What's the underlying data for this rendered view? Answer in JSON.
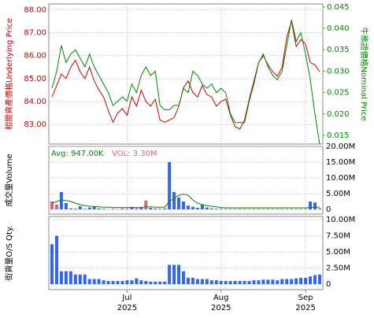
{
  "chart_data": [
    {
      "type": "line",
      "y_label": "相關資產價格Underlying Price",
      "y2_label": "牛熊證價格Nominal Price",
      "categories": [
        null,
        null,
        null,
        null,
        null,
        null,
        null,
        null,
        null,
        null,
        null,
        null,
        null,
        null,
        null,
        null,
        null,
        null,
        null,
        null,
        null,
        null,
        null,
        null,
        null,
        null,
        null,
        null,
        null,
        null,
        null,
        null,
        null,
        null,
        null,
        null,
        null,
        null,
        null,
        null,
        null,
        null,
        null,
        null,
        null,
        null,
        null,
        null,
        null,
        null,
        null,
        null,
        null,
        null,
        null,
        null,
        null,
        null
      ],
      "series": [
        {
          "color": "#cc0000",
          "values": [
            84.2,
            84.7,
            85.2,
            85.0,
            85.5,
            85.8,
            85.3,
            85.0,
            85.5,
            84.9,
            84.5,
            84.2,
            83.6,
            83.1,
            83.5,
            83.7,
            83.4,
            84.2,
            83.8,
            84.5,
            84.0,
            83.8,
            84.1,
            83.2,
            83.1,
            83.2,
            83.3,
            83.8,
            84.6,
            84.9,
            84.4,
            84.2,
            84.7,
            84.3,
            84.2,
            83.8,
            84.0,
            84.1,
            83.4,
            82.9,
            82.8,
            83.2,
            84.1,
            84.9,
            85.7,
            86.0,
            85.6,
            85.3,
            85.1,
            85.5,
            86.8,
            87.5,
            86.4,
            86.7,
            86.5,
            85.7,
            85.6,
            85.3
          ]
        },
        {
          "color": "#008800",
          "axis": "y2",
          "values": [
            0.026,
            0.03,
            0.036,
            0.032,
            0.034,
            0.035,
            0.033,
            0.031,
            0.034,
            0.031,
            0.029,
            0.027,
            0.025,
            0.022,
            0.023,
            0.024,
            0.023,
            0.027,
            0.025,
            0.029,
            0.031,
            0.029,
            0.03,
            0.022,
            0.021,
            0.021,
            0.022,
            0.022,
            0.026,
            0.025,
            0.03,
            0.029,
            0.027,
            0.026,
            0.027,
            0.025,
            0.026,
            0.025,
            0.02,
            0.018,
            0.018,
            0.018,
            0.023,
            0.027,
            0.032,
            0.034,
            0.031,
            0.029,
            0.028,
            0.03,
            0.036,
            0.042,
            0.037,
            0.039,
            0.034,
            0.028,
            0.02,
            0.013
          ]
        }
      ],
      "ylim": [
        82.15,
        88.25
      ],
      "yticks": [
        {
          "value": 83,
          "label": "83.00"
        },
        {
          "value": 84,
          "label": "84.00"
        },
        {
          "value": 85,
          "label": "85.00"
        },
        {
          "value": 86,
          "label": "86.00"
        },
        {
          "value": 87,
          "label": "87.00"
        },
        {
          "value": 88,
          "label": "88.00"
        }
      ],
      "y2lim": [
        0.013,
        0.0457
      ],
      "y2ticks": [
        0.015,
        {
          "value": 0.02,
          "label": "0.020"
        },
        0.025,
        {
          "value": 0.03,
          "label": "0.030"
        },
        0.035,
        {
          "value": 0.04,
          "label": "0.040"
        },
        0.045
      ],
      "grid": true
    },
    {
      "type": "bar",
      "y_label": "成交量Volume",
      "avg_text": "Avg: 947.00K",
      "avg_color": "#008800",
      "vol_text": "VOL: 3.30M",
      "vol_color": "#e06080",
      "categories": [
        null,
        null,
        null,
        null,
        null,
        null,
        null,
        null,
        null,
        null,
        null,
        null,
        null,
        null,
        null,
        null,
        null,
        null,
        null,
        null,
        null,
        null,
        null,
        null,
        null,
        null,
        null,
        null,
        null,
        null,
        null,
        null,
        null,
        null,
        null,
        null,
        null,
        null,
        null,
        null,
        null,
        null,
        null,
        null,
        null,
        null,
        null,
        null,
        null,
        null,
        null,
        null,
        null,
        null,
        null,
        null,
        null,
        null
      ],
      "values": [
        2500000,
        1500000,
        5500000,
        2000000,
        300000,
        200000,
        1000000,
        200000,
        600000,
        800000,
        300000,
        200000,
        100000,
        200000,
        100000,
        300000,
        200000,
        800000,
        300000,
        600000,
        2800000,
        500000,
        300000,
        200000,
        300000,
        15000000,
        5500000,
        3800000,
        2500000,
        1200000,
        800000,
        500000,
        1500000,
        600000,
        300000,
        200000,
        200000,
        150000,
        150000,
        150000,
        150000,
        150000,
        150000,
        150000,
        150000,
        150000,
        150000,
        150000,
        150000,
        150000,
        150000,
        150000,
        150000,
        150000,
        150000,
        2500000,
        2200000,
        300000
      ],
      "colors": [
        "#e06080",
        "#e06080",
        "#3366ee",
        "#3366ee",
        "#3366ee",
        "#3366ee",
        "#3366ee",
        "#3366ee",
        "#3366ee",
        "#3366ee",
        "#3366ee",
        "#3366ee",
        "#3366ee",
        "#3366ee",
        "#3366ee",
        "#3366ee",
        "#3366ee",
        "#3366ee",
        "#3366ee",
        "#3366ee",
        "#e06080",
        "#3366ee",
        "#3366ee",
        "#3366ee",
        "#3366ee",
        "#3366ee",
        "#3366ee",
        "#3366ee",
        "#3366ee",
        "#3366ee",
        "#3366ee",
        "#3366ee",
        "#3366ee",
        "#3366ee",
        "#3366ee",
        "#3366ee",
        "#3366ee",
        "#3366ee",
        "#3366ee",
        "#3366ee",
        "#3366ee",
        "#3366ee",
        "#3366ee",
        "#3366ee",
        "#3366ee",
        "#3366ee",
        "#3366ee",
        "#3366ee",
        "#3366ee",
        "#3366ee",
        "#3366ee",
        "#3366ee",
        "#3366ee",
        "#3366ee",
        "#3366ee",
        "#3366ee",
        "#3366ee",
        "#3366ee"
      ],
      "line": {
        "color": "#008800",
        "values": [
          2000000,
          2500000,
          3000000,
          2800000,
          2500000,
          2000000,
          1500000,
          1200000,
          1000000,
          900000,
          800000,
          700000,
          700000,
          600000,
          600000,
          600000,
          600000,
          600000,
          600000,
          600000,
          800000,
          800000,
          700000,
          700000,
          700000,
          2500000,
          3500000,
          4500000,
          4800000,
          4500000,
          3000000,
          2000000,
          1500000,
          1200000,
          1000000,
          800000,
          600000,
          500000,
          500000,
          500000,
          500000,
          500000,
          500000,
          500000,
          500000,
          500000,
          500000,
          500000,
          500000,
          500000,
          500000,
          500000,
          500000,
          500000,
          500000,
          600000,
          700000,
          700000
        ]
      },
      "ylim": [
        -1500000,
        20000000
      ],
      "yticks": [
        0,
        {
          "value": 5000000,
          "label": "5.00M"
        },
        {
          "value": 10000000,
          "label": "10.00M"
        },
        {
          "value": 15000000,
          "label": "15.00M"
        },
        {
          "value": 20000000,
          "label": "20.00M"
        }
      ],
      "grid": true
    },
    {
      "type": "bar",
      "y_label": "街貨量O/S Qty.",
      "categories": [
        null,
        null,
        null,
        null,
        null,
        null,
        null,
        null,
        null,
        null,
        null,
        null,
        null,
        null,
        null,
        null,
        null,
        null,
        null,
        null,
        null,
        null,
        null,
        null,
        null,
        null,
        null,
        null,
        null,
        null,
        null,
        null,
        null,
        null,
        null,
        null,
        null,
        null,
        null,
        null,
        null,
        null,
        null,
        null,
        null,
        null,
        null,
        null,
        null,
        null,
        null,
        null,
        null,
        null,
        null,
        null,
        null,
        null
      ],
      "values": [
        6200000,
        7500000,
        2000000,
        2000000,
        2000000,
        1500000,
        1500000,
        1500000,
        800000,
        800000,
        800000,
        600000,
        500000,
        500000,
        500000,
        500000,
        600000,
        600000,
        900000,
        600000,
        500000,
        400000,
        400000,
        400000,
        400000,
        3000000,
        3000000,
        3000000,
        2000000,
        1000000,
        1000000,
        800000,
        800000,
        800000,
        600000,
        600000,
        500000,
        500000,
        500000,
        500000,
        500000,
        500000,
        500000,
        600000,
        600000,
        700000,
        700000,
        700000,
        600000,
        800000,
        800000,
        800000,
        900000,
        1000000,
        1000000,
        1200000,
        1400000,
        1500000
      ],
      "color": "#3366ee",
      "ylim": [
        -850000,
        10500000
      ],
      "yticks": [
        0,
        {
          "value": 2500000,
          "label": "2.50M"
        },
        {
          "value": 5000000,
          "label": "5.00M"
        },
        {
          "value": 7500000,
          "label": "7.50M"
        },
        {
          "value": 10000000,
          "label": "10.00M"
        }
      ],
      "xticks": [
        {
          "value": 16,
          "label": "Jul"
        },
        {
          "value": 36,
          "label": "Aug"
        },
        {
          "value": 54,
          "label": "Sep"
        }
      ],
      "xtick_sublabels": [
        "2025",
        "2025",
        "2025"
      ],
      "grid": true
    }
  ]
}
